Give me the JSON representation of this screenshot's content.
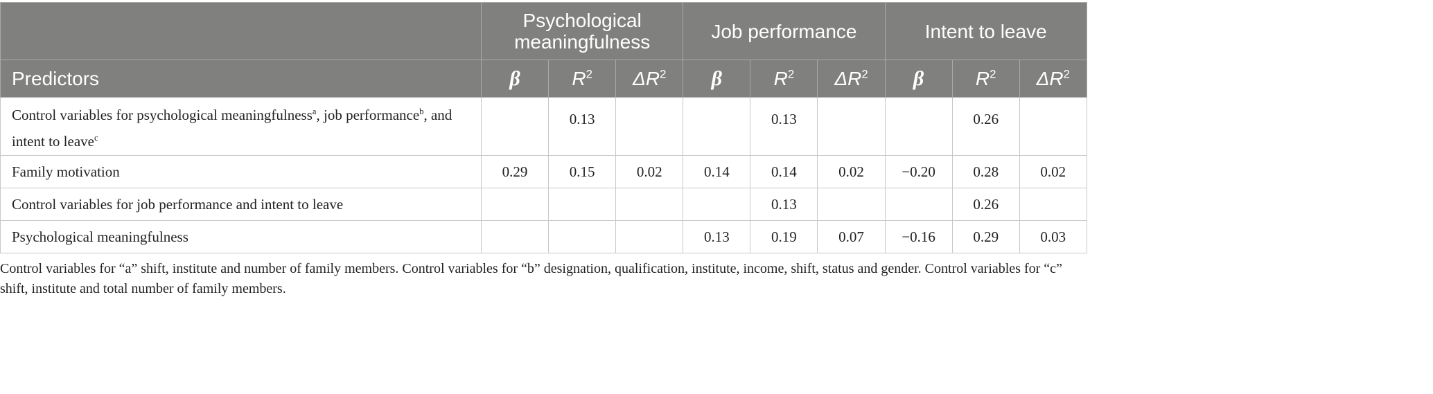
{
  "table": {
    "groups": [
      "Psychological meaningfulness",
      "Job performance",
      "Intent to leave"
    ],
    "columns": [
      {
        "text": "Predictors"
      },
      {
        "symbol": "β"
      },
      {
        "symbol": "R",
        "sup": "2"
      },
      {
        "symbol": "ΔR",
        "sup": "2"
      },
      {
        "symbol": "β"
      },
      {
        "symbol": "R",
        "sup": "2"
      },
      {
        "symbol": "ΔR",
        "sup": "2"
      },
      {
        "symbol": "β"
      },
      {
        "symbol": "R",
        "sup": "2"
      },
      {
        "symbol": "ΔR",
        "sup": "2"
      }
    ],
    "rows": [
      {
        "label": [
          {
            "text": "Control variables for psychological meaningfulness"
          },
          {
            "sup": "a"
          },
          {
            "text": ", job performance"
          },
          {
            "sup": "b"
          },
          {
            "text": ", and intent to leave"
          },
          {
            "sup": "c"
          }
        ],
        "cells": [
          null,
          "0.13",
          null,
          null,
          "0.13",
          null,
          null,
          "0.26",
          null
        ]
      },
      {
        "label": [
          {
            "text": "Family motivation"
          }
        ],
        "cells": [
          "0.29",
          "0.15",
          "0.02",
          "0.14",
          "0.14",
          "0.02",
          "−0.20",
          "0.28",
          "0.02"
        ]
      },
      {
        "label": [
          {
            "text": "Control variables for job performance and intent to leave"
          }
        ],
        "cells": [
          null,
          null,
          null,
          null,
          "0.13",
          null,
          null,
          "0.26",
          null
        ]
      },
      {
        "label": [
          {
            "text": "Psychological meaningfulness"
          }
        ],
        "cells": [
          null,
          null,
          null,
          "0.13",
          "0.19",
          "0.07",
          "−0.16",
          "0.29",
          "0.03"
        ]
      }
    ]
  },
  "footnote": "Control variables for “a” shift, institute and number of family members. Control variables for “b” designation, qualification, institute, income, shift, status and gender. Control variables for “c” shift, institute and total number of family members."
}
